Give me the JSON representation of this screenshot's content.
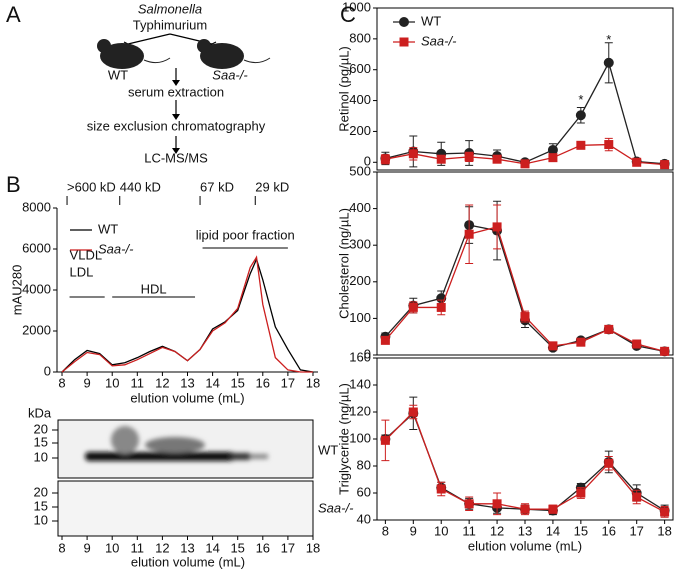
{
  "panels": [
    "A",
    "B",
    "C"
  ],
  "panel_a": {
    "organism": [
      "Salmonella",
      "Typhimurium"
    ],
    "mice": [
      "WT",
      "Saa-/-"
    ],
    "steps": [
      "serum extraction",
      "size exclusion chromatography",
      "LC-MS/MS"
    ]
  },
  "blot": {
    "unit": "kDa",
    "ylabels": [
      20,
      15,
      10
    ],
    "lanes": [
      "WT",
      "Saa-/-"
    ],
    "xticks": [
      8,
      9,
      10,
      11,
      12,
      13,
      14,
      15,
      16,
      17,
      18
    ],
    "xlabel": "elution volume (mL)"
  },
  "chart_data": [
    {
      "type": "line",
      "ylabel": "mAU280",
      "xlabel": "elution volume (mL)",
      "x": [
        8,
        8.5,
        9,
        9.5,
        10,
        10.5,
        11,
        11.5,
        12,
        12.5,
        13,
        13.5,
        14,
        14.5,
        15,
        15.5,
        15.75,
        16,
        16.5,
        17,
        17.5,
        18
      ],
      "series": [
        {
          "name": "WT",
          "color": "#000000",
          "values": [
            0,
            600,
            1050,
            900,
            350,
            450,
            700,
            1000,
            1250,
            1000,
            550,
            1100,
            2100,
            2450,
            3000,
            4800,
            5500,
            4500,
            2200,
            1100,
            100,
            0
          ]
        },
        {
          "name": "Saa-/-",
          "color": "#cc1f1f",
          "values": [
            0,
            500,
            950,
            850,
            300,
            350,
            600,
            900,
            1200,
            1000,
            550,
            1100,
            2000,
            2400,
            3100,
            5100,
            5600,
            3300,
            700,
            100,
            0,
            0
          ]
        }
      ],
      "xlim": [
        7.8,
        18.2
      ],
      "ylim": [
        0,
        8000
      ],
      "xticks": [
        8,
        9,
        10,
        11,
        12,
        13,
        14,
        15,
        16,
        17,
        18
      ],
      "yticks": [
        0,
        2000,
        4000,
        6000,
        8000
      ],
      "markers": [
        {
          "label": ">600 kD",
          "x": 8.2
        },
        {
          "label": "440 kD",
          "x": 10.3
        },
        {
          "label": "67 kD",
          "x": 13.5
        },
        {
          "label": "29 kD",
          "x": 15.7
        }
      ],
      "ranges": [
        {
          "label": [
            "VLDL",
            "LDL"
          ],
          "x": [
            8.3,
            9.7
          ]
        },
        {
          "label": [
            "HDL"
          ],
          "x": [
            10,
            13.3
          ]
        },
        {
          "label": [
            "lipid poor fraction"
          ],
          "x": [
            13.6,
            17
          ]
        }
      ]
    },
    {
      "type": "errorline",
      "ylabel": "Retinol (pg/µL)",
      "x": [
        8,
        9,
        10,
        11,
        12,
        13,
        14,
        15,
        16,
        17,
        18
      ],
      "series": [
        {
          "name": "WT",
          "color": "#222222",
          "marker": "circle",
          "values": [
            25,
            70,
            55,
            60,
            40,
            0,
            80,
            305,
            645,
            5,
            -10
          ],
          "errors": [
            40,
            100,
            75,
            80,
            40,
            10,
            40,
            50,
            130,
            10,
            10
          ]
        },
        {
          "name": "Saa-/-",
          "color": "#cc1f1f",
          "marker": "square",
          "values": [
            20,
            55,
            20,
            35,
            20,
            -10,
            30,
            110,
            115,
            0,
            -15
          ],
          "errors": [
            30,
            40,
            20,
            30,
            20,
            10,
            20,
            20,
            40,
            10,
            10
          ]
        }
      ],
      "xlim": [
        7.7,
        18.3
      ],
      "ylim": [
        -50,
        1000
      ],
      "yticks": [
        0,
        200,
        400,
        600,
        800,
        1000
      ],
      "annotations": [
        {
          "text": "*",
          "x": 15,
          "y": 400
        },
        {
          "text": "*",
          "x": 16,
          "y": 790
        }
      ]
    },
    {
      "type": "errorline",
      "ylabel": "Cholesterol (ng/µL)",
      "x": [
        8,
        9,
        10,
        11,
        12,
        13,
        14,
        15,
        16,
        17,
        18
      ],
      "series": [
        {
          "name": "WT",
          "color": "#222222",
          "marker": "circle",
          "values": [
            50,
            135,
            155,
            355,
            340,
            95,
            20,
            40,
            70,
            25,
            10
          ],
          "errors": [
            10,
            20,
            20,
            50,
            80,
            20,
            5,
            5,
            10,
            5,
            5
          ]
        },
        {
          "name": "Saa-/-",
          "color": "#cc1f1f",
          "marker": "square",
          "values": [
            40,
            130,
            130,
            330,
            350,
            105,
            25,
            35,
            70,
            30,
            10
          ],
          "errors": [
            10,
            15,
            20,
            80,
            60,
            15,
            5,
            5,
            10,
            5,
            5
          ]
        }
      ],
      "xlim": [
        7.7,
        18.3
      ],
      "ylim": [
        0,
        500
      ],
      "yticks": [
        0,
        100,
        200,
        300,
        400,
        500
      ]
    },
    {
      "type": "errorline",
      "ylabel": "Triglyceride (ng/µL)",
      "xlabel": "elution volume (mL)",
      "x": [
        8,
        9,
        10,
        11,
        12,
        13,
        14,
        15,
        16,
        17,
        18
      ],
      "series": [
        {
          "name": "WT",
          "color": "#222222",
          "marker": "circle",
          "values": [
            100,
            119,
            64,
            52,
            49,
            48,
            47,
            64,
            83,
            60,
            47
          ],
          "errors": [
            3,
            12,
            4,
            4,
            4,
            3,
            3,
            3,
            8,
            6,
            4
          ]
        },
        {
          "name": "Saa-/-",
          "color": "#cc1f1f",
          "marker": "square",
          "values": [
            99,
            120,
            63,
            52,
            52,
            48,
            48,
            60,
            82,
            57,
            46
          ],
          "errors": [
            15,
            5,
            5,
            5,
            8,
            4,
            3,
            4,
            5,
            5,
            4
          ]
        }
      ],
      "xlim": [
        7.7,
        18.3
      ],
      "ylim": [
        40,
        160
      ],
      "xticks": [
        8,
        9,
        10,
        11,
        12,
        13,
        14,
        15,
        16,
        17,
        18
      ],
      "yticks": [
        40,
        60,
        80,
        100,
        120,
        140,
        160
      ]
    }
  ]
}
